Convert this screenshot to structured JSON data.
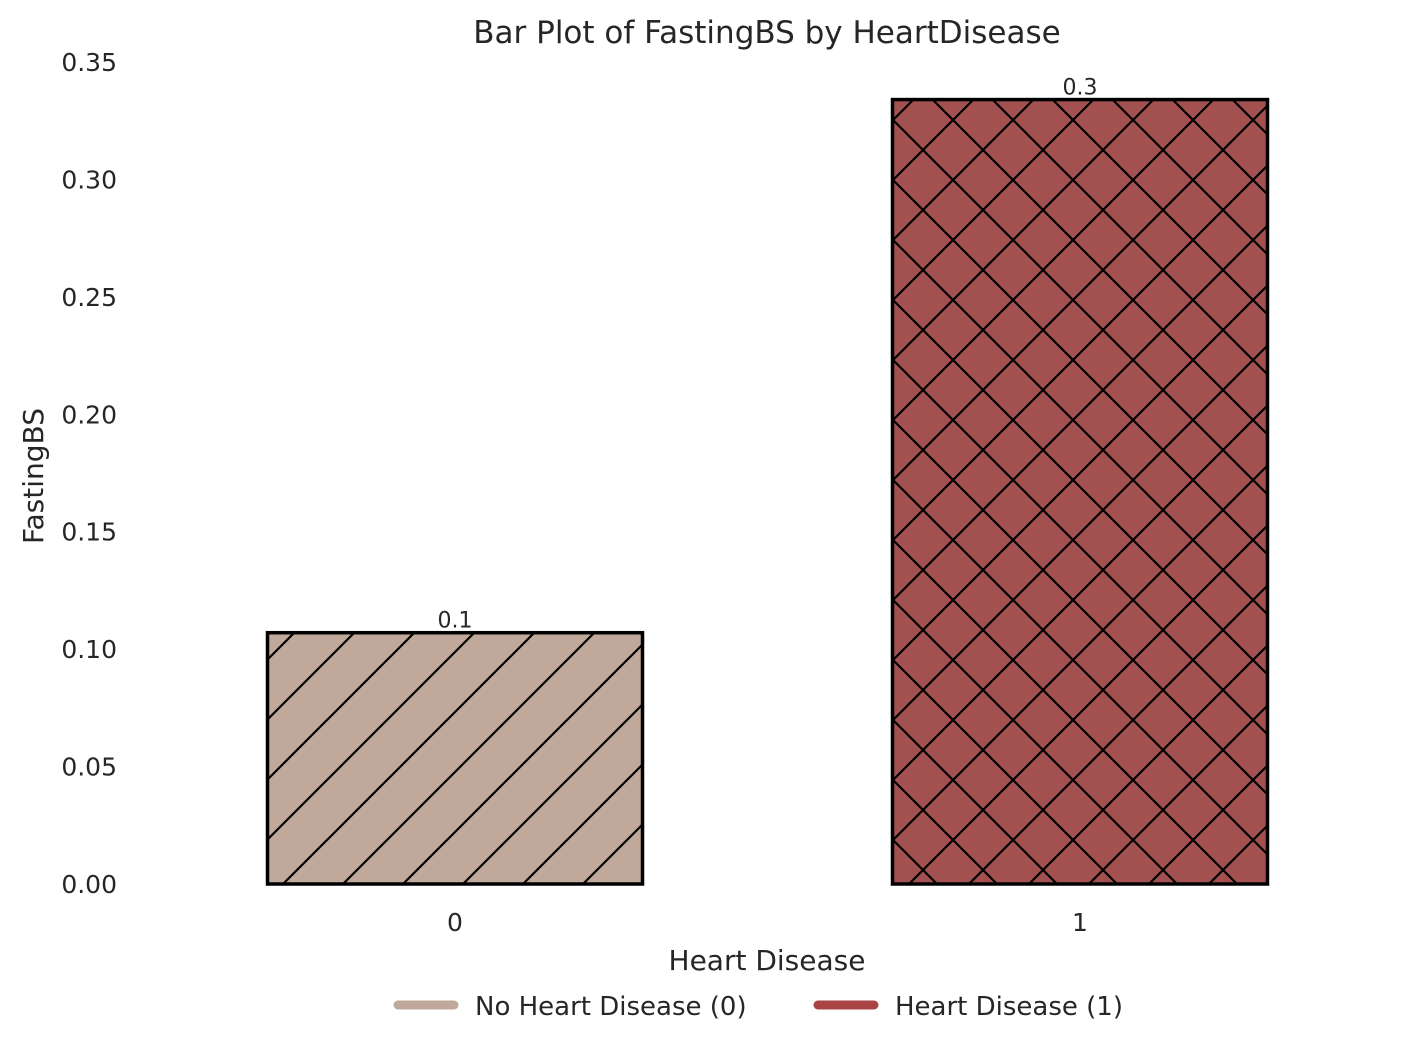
{
  "chart_data": {
    "type": "bar",
    "title": "Bar Plot of FastingBS by HeartDisease",
    "xlabel": "Heart Disease",
    "ylabel": "FastingBS",
    "categories": [
      "0",
      "1"
    ],
    "values": [
      0.107,
      0.334
    ],
    "data_labels": [
      "0.1",
      "0.3"
    ],
    "ylim": [
      0,
      0.35
    ],
    "yticks": [
      {
        "value": 0.0,
        "label": "0.00"
      },
      {
        "value": 0.05,
        "label": "0.05"
      },
      {
        "value": 0.1,
        "label": "0.10"
      },
      {
        "value": 0.15,
        "label": "0.15"
      },
      {
        "value": 0.2,
        "label": "0.20"
      },
      {
        "value": 0.25,
        "label": "0.25"
      },
      {
        "value": 0.3,
        "label": "0.30"
      },
      {
        "value": 0.35,
        "label": "0.35"
      }
    ],
    "colors": [
      "#c0a99a",
      "#a35050"
    ],
    "hatches": [
      "diagonal",
      "crosshatch"
    ],
    "edge_color": "#000000",
    "grid": false,
    "legend": {
      "placement": "bottom-center",
      "entries": [
        {
          "label": "No Heart Disease (0)",
          "color": "#c0a99a"
        },
        {
          "label": "Heart Disease (1)",
          "color": "#a84444"
        }
      ]
    }
  }
}
